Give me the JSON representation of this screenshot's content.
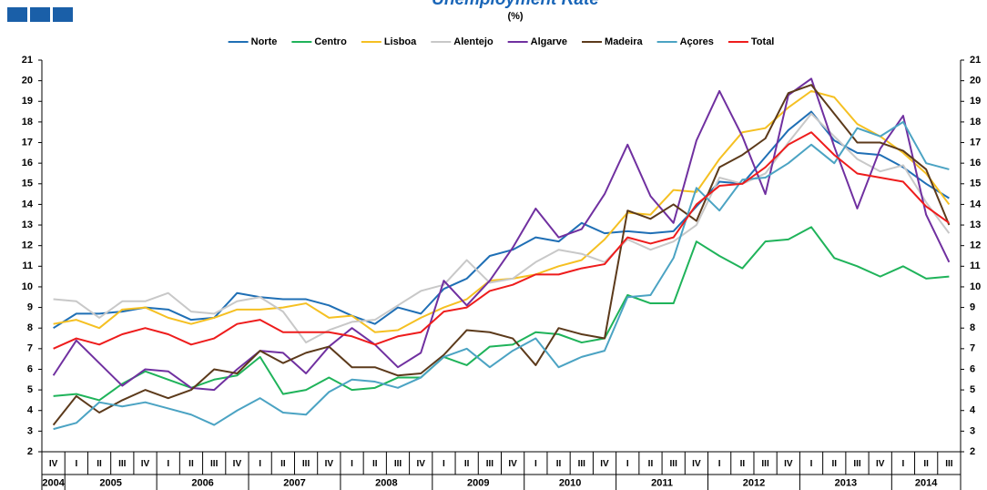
{
  "chart_data": {
    "type": "line",
    "title": "Unemployment Rate",
    "subtitle": "(%)",
    "legend": "top",
    "grid": false,
    "right_axis_labels": true,
    "categories": [
      "IV",
      "I",
      "II",
      "III",
      "IV",
      "I",
      "II",
      "III",
      "IV",
      "I",
      "II",
      "III",
      "IV",
      "I",
      "II",
      "III",
      "IV",
      "I",
      "II",
      "III",
      "IV",
      "I",
      "II",
      "III",
      "IV",
      "I",
      "II",
      "III",
      "IV",
      "I",
      "II",
      "III",
      "IV",
      "I",
      "II",
      "III",
      "IV",
      "I",
      "II",
      "III"
    ],
    "years": [
      "2004",
      "2005",
      "2006",
      "2007",
      "2008",
      "2009",
      "2010",
      "2011",
      "2012",
      "2013",
      "2014"
    ],
    "ylim": [
      2,
      21
    ],
    "yticks": [
      2,
      3,
      4,
      5,
      6,
      7,
      8,
      9,
      10,
      11,
      12,
      13,
      14,
      15,
      16,
      17,
      18,
      19,
      20,
      21
    ],
    "series": [
      {
        "name": "Norte",
        "color": "#1f6fb5",
        "values": [
          8.0,
          8.7,
          8.7,
          8.8,
          9.0,
          8.9,
          8.4,
          8.5,
          9.7,
          9.5,
          9.4,
          9.4,
          9.1,
          8.6,
          8.2,
          9.0,
          8.7,
          9.9,
          10.4,
          11.5,
          11.8,
          12.4,
          12.2,
          13.1,
          12.6,
          12.7,
          12.6,
          12.7,
          13.9,
          15.1,
          15.0,
          16.3,
          17.6,
          18.5,
          17.1,
          16.5,
          16.4,
          15.8,
          15.0,
          14.3
        ]
      },
      {
        "name": "Centro",
        "color": "#1fb35a",
        "values": [
          4.7,
          4.8,
          4.5,
          5.3,
          5.9,
          5.5,
          5.1,
          5.5,
          5.7,
          6.6,
          4.8,
          5.0,
          5.6,
          5.0,
          5.1,
          5.6,
          5.6,
          6.6,
          6.2,
          7.1,
          7.2,
          7.8,
          7.7,
          7.3,
          7.5,
          9.6,
          9.2,
          9.2,
          12.2,
          11.5,
          10.9,
          12.2,
          12.3,
          12.9,
          11.4,
          11.0,
          10.5,
          11.0,
          10.4,
          10.5
        ]
      },
      {
        "name": "Lisboa",
        "color": "#f5c022",
        "values": [
          8.2,
          8.4,
          8.0,
          8.9,
          9.0,
          8.5,
          8.2,
          8.5,
          8.9,
          8.9,
          9.0,
          9.2,
          8.5,
          8.6,
          7.8,
          7.9,
          8.5,
          9.0,
          9.4,
          10.3,
          10.4,
          10.6,
          11.0,
          11.3,
          12.3,
          13.6,
          13.5,
          14.7,
          14.6,
          16.2,
          17.5,
          17.7,
          18.7,
          19.5,
          19.2,
          17.9,
          17.3,
          16.5,
          15.5,
          14.0
        ]
      },
      {
        "name": "Alentejo",
        "color": "#c8c8c8",
        "values": [
          9.4,
          9.3,
          8.5,
          9.3,
          9.3,
          9.7,
          8.8,
          8.7,
          9.3,
          9.5,
          8.8,
          7.3,
          7.9,
          8.3,
          8.4,
          9.1,
          9.8,
          10.1,
          11.3,
          10.2,
          10.4,
          11.2,
          11.8,
          11.6,
          11.2,
          12.3,
          11.8,
          12.2,
          13.0,
          15.3,
          15.0,
          15.5,
          17.0,
          18.4,
          17.3,
          16.2,
          15.6,
          15.9,
          14.1,
          12.6
        ]
      },
      {
        "name": "Algarve",
        "color": "#7030a0",
        "values": [
          5.7,
          7.4,
          6.3,
          5.2,
          6.0,
          5.9,
          5.1,
          5.0,
          6.0,
          6.9,
          6.8,
          5.8,
          7.1,
          8.0,
          7.2,
          6.1,
          6.8,
          10.3,
          9.1,
          10.3,
          11.9,
          13.8,
          12.4,
          12.8,
          14.5,
          16.9,
          14.4,
          13.1,
          17.1,
          19.5,
          17.3,
          14.5,
          19.3,
          20.1,
          16.8,
          13.8,
          16.7,
          18.3,
          13.5,
          11.2
        ]
      },
      {
        "name": "Madeira",
        "color": "#5c3a1b",
        "values": [
          3.3,
          4.7,
          3.9,
          4.5,
          5.0,
          4.6,
          5.0,
          6.0,
          5.8,
          6.9,
          6.3,
          6.8,
          7.1,
          6.1,
          6.1,
          5.7,
          5.8,
          6.7,
          7.9,
          7.8,
          7.5,
          6.2,
          8.0,
          7.7,
          7.5,
          13.7,
          13.3,
          14.0,
          13.2,
          15.8,
          16.4,
          17.2,
          19.4,
          19.8,
          18.4,
          17.0,
          17.0,
          16.6,
          15.7,
          13.0
        ]
      },
      {
        "name": "Açores",
        "color": "#4ba3c3",
        "values": [
          3.1,
          3.4,
          4.4,
          4.2,
          4.4,
          4.1,
          3.8,
          3.3,
          4.0,
          4.6,
          3.9,
          3.8,
          4.9,
          5.5,
          5.4,
          5.1,
          5.6,
          6.6,
          7.0,
          6.1,
          6.9,
          7.5,
          6.1,
          6.6,
          6.9,
          9.5,
          9.6,
          11.4,
          14.8,
          13.7,
          15.2,
          15.3,
          16.0,
          16.9,
          16.0,
          17.7,
          17.3,
          18.0,
          16.0,
          15.7
        ]
      },
      {
        "name": "Total",
        "color": "#ee1c1c",
        "values": [
          7.0,
          7.5,
          7.2,
          7.7,
          8.0,
          7.7,
          7.2,
          7.5,
          8.2,
          8.4,
          7.8,
          7.8,
          7.8,
          7.6,
          7.2,
          7.6,
          7.8,
          8.8,
          9.0,
          9.8,
          10.1,
          10.6,
          10.6,
          10.9,
          11.1,
          12.4,
          12.1,
          12.4,
          14.0,
          14.9,
          15.0,
          15.8,
          16.9,
          17.5,
          16.4,
          15.5,
          15.3,
          15.1,
          13.9,
          13.1
        ]
      }
    ]
  }
}
